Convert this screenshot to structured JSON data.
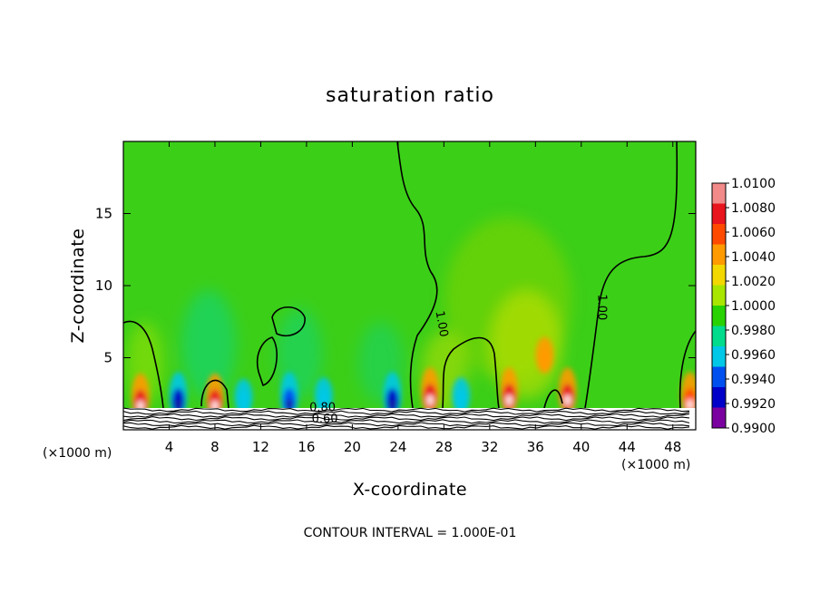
{
  "chart_data": {
    "type": "heatmap",
    "title": "saturation ratio",
    "xlabel": "X-coordinate",
    "ylabel": "Z-coordinate",
    "x_unit": "(×1000 m)",
    "y_unit": "(×1000 m)",
    "xlim": [
      0,
      50
    ],
    "ylim": [
      0,
      20
    ],
    "x_ticks": [
      4,
      8,
      12,
      16,
      20,
      24,
      28,
      32,
      36,
      40,
      44,
      48
    ],
    "y_ticks": [
      5,
      10,
      15
    ],
    "footer": "CONTOUR INTERVAL = 1.000E-01",
    "contour_labels": [
      {
        "text": "1.00",
        "x": 27.5,
        "y": 7.3,
        "angle": 80
      },
      {
        "text": "1.00",
        "x": 41.5,
        "y": 8.5,
        "angle": 90
      },
      {
        "text": "0.80",
        "x": 17.4,
        "y": 1.3,
        "angle": 0
      },
      {
        "text": "0.60",
        "x": 17.6,
        "y": 0.5,
        "angle": 0
      }
    ],
    "colorbar": {
      "levels": [
        "1.0100",
        "1.0080",
        "1.0060",
        "1.0040",
        "1.0020",
        "1.0000",
        "0.9980",
        "0.9960",
        "0.9940",
        "0.9920",
        "0.9900"
      ],
      "min": 0.99,
      "max": 1.01,
      "colors": [
        "#f28a8a",
        "#e8141e",
        "#ff4a00",
        "#ff9a00",
        "#f2d800",
        "#a8e600",
        "#28d200",
        "#00dc8c",
        "#00c8e6",
        "#0050f0",
        "#0000c8",
        "#7a00a0"
      ]
    },
    "field_background": "#3ccf18",
    "hotspots": [
      {
        "x": 1.5,
        "z": 1.9,
        "value": 1.008
      },
      {
        "x": 4.8,
        "z": 2.0,
        "value": 0.993
      },
      {
        "x": 8.0,
        "z": 1.9,
        "value": 1.008
      },
      {
        "x": 10.5,
        "z": 1.9,
        "value": 0.996
      },
      {
        "x": 14.5,
        "z": 2.0,
        "value": 0.994
      },
      {
        "x": 17.5,
        "z": 2.0,
        "value": 0.996
      },
      {
        "x": 23.5,
        "z": 2.0,
        "value": 0.993
      },
      {
        "x": 26.8,
        "z": 2.3,
        "value": 1.008
      },
      {
        "x": 29.5,
        "z": 2.0,
        "value": 0.996
      },
      {
        "x": 33.7,
        "z": 2.3,
        "value": 1.008
      },
      {
        "x": 36.8,
        "z": 4.8,
        "value": 1.004
      },
      {
        "x": 38.8,
        "z": 2.3,
        "value": 1.008
      },
      {
        "x": 49.5,
        "z": 2.0,
        "value": 1.006
      }
    ]
  }
}
